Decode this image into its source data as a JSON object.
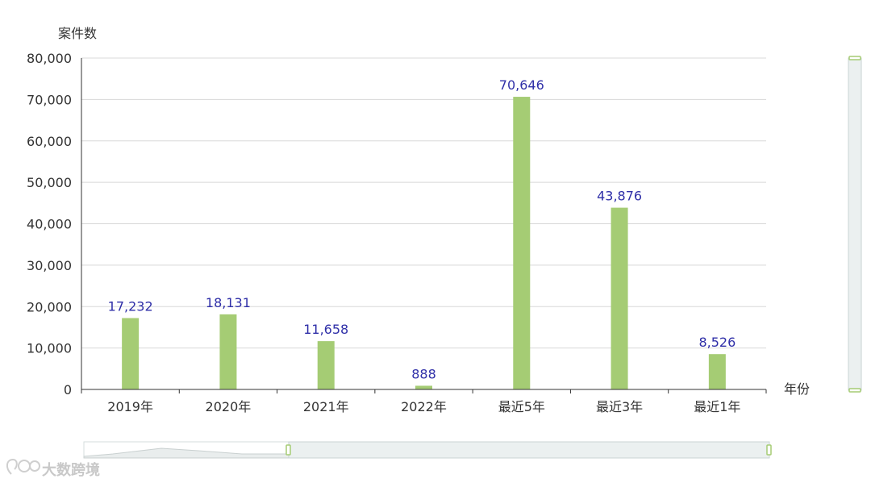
{
  "chart_data": {
    "type": "bar",
    "ylabel": "案件数",
    "xlabel": "年份",
    "categories": [
      "2019年",
      "2020年",
      "2021年",
      "2022年",
      "最近5年",
      "最近3年",
      "最近1年"
    ],
    "values": [
      17232,
      18131,
      11658,
      888,
      70646,
      43876,
      8526
    ],
    "value_labels": [
      "17,232",
      "18,131",
      "11,658",
      "888",
      "70,646",
      "43,876",
      "8,526"
    ],
    "ylim": [
      0,
      80000
    ],
    "yticks": [
      0,
      10000,
      20000,
      30000,
      40000,
      50000,
      60000,
      70000,
      80000
    ],
    "ytick_labels": [
      "0",
      "10,000",
      "20,000",
      "30,000",
      "40,000",
      "50,000",
      "60,000",
      "70,000",
      "80,000"
    ],
    "grid": true,
    "data_zoom": {
      "horizontal": true,
      "vertical": true
    }
  },
  "colors": {
    "bar": "#a5cc74",
    "value_label": "#2f2fa8",
    "grid": "#d8d8d8",
    "axis": "#333333",
    "zoom_fill": "#ebf0f0",
    "zoom_border": "#c8d3d3",
    "zoom_handle": "#a5cc74"
  },
  "watermark": {
    "text": "大数跨境"
  }
}
